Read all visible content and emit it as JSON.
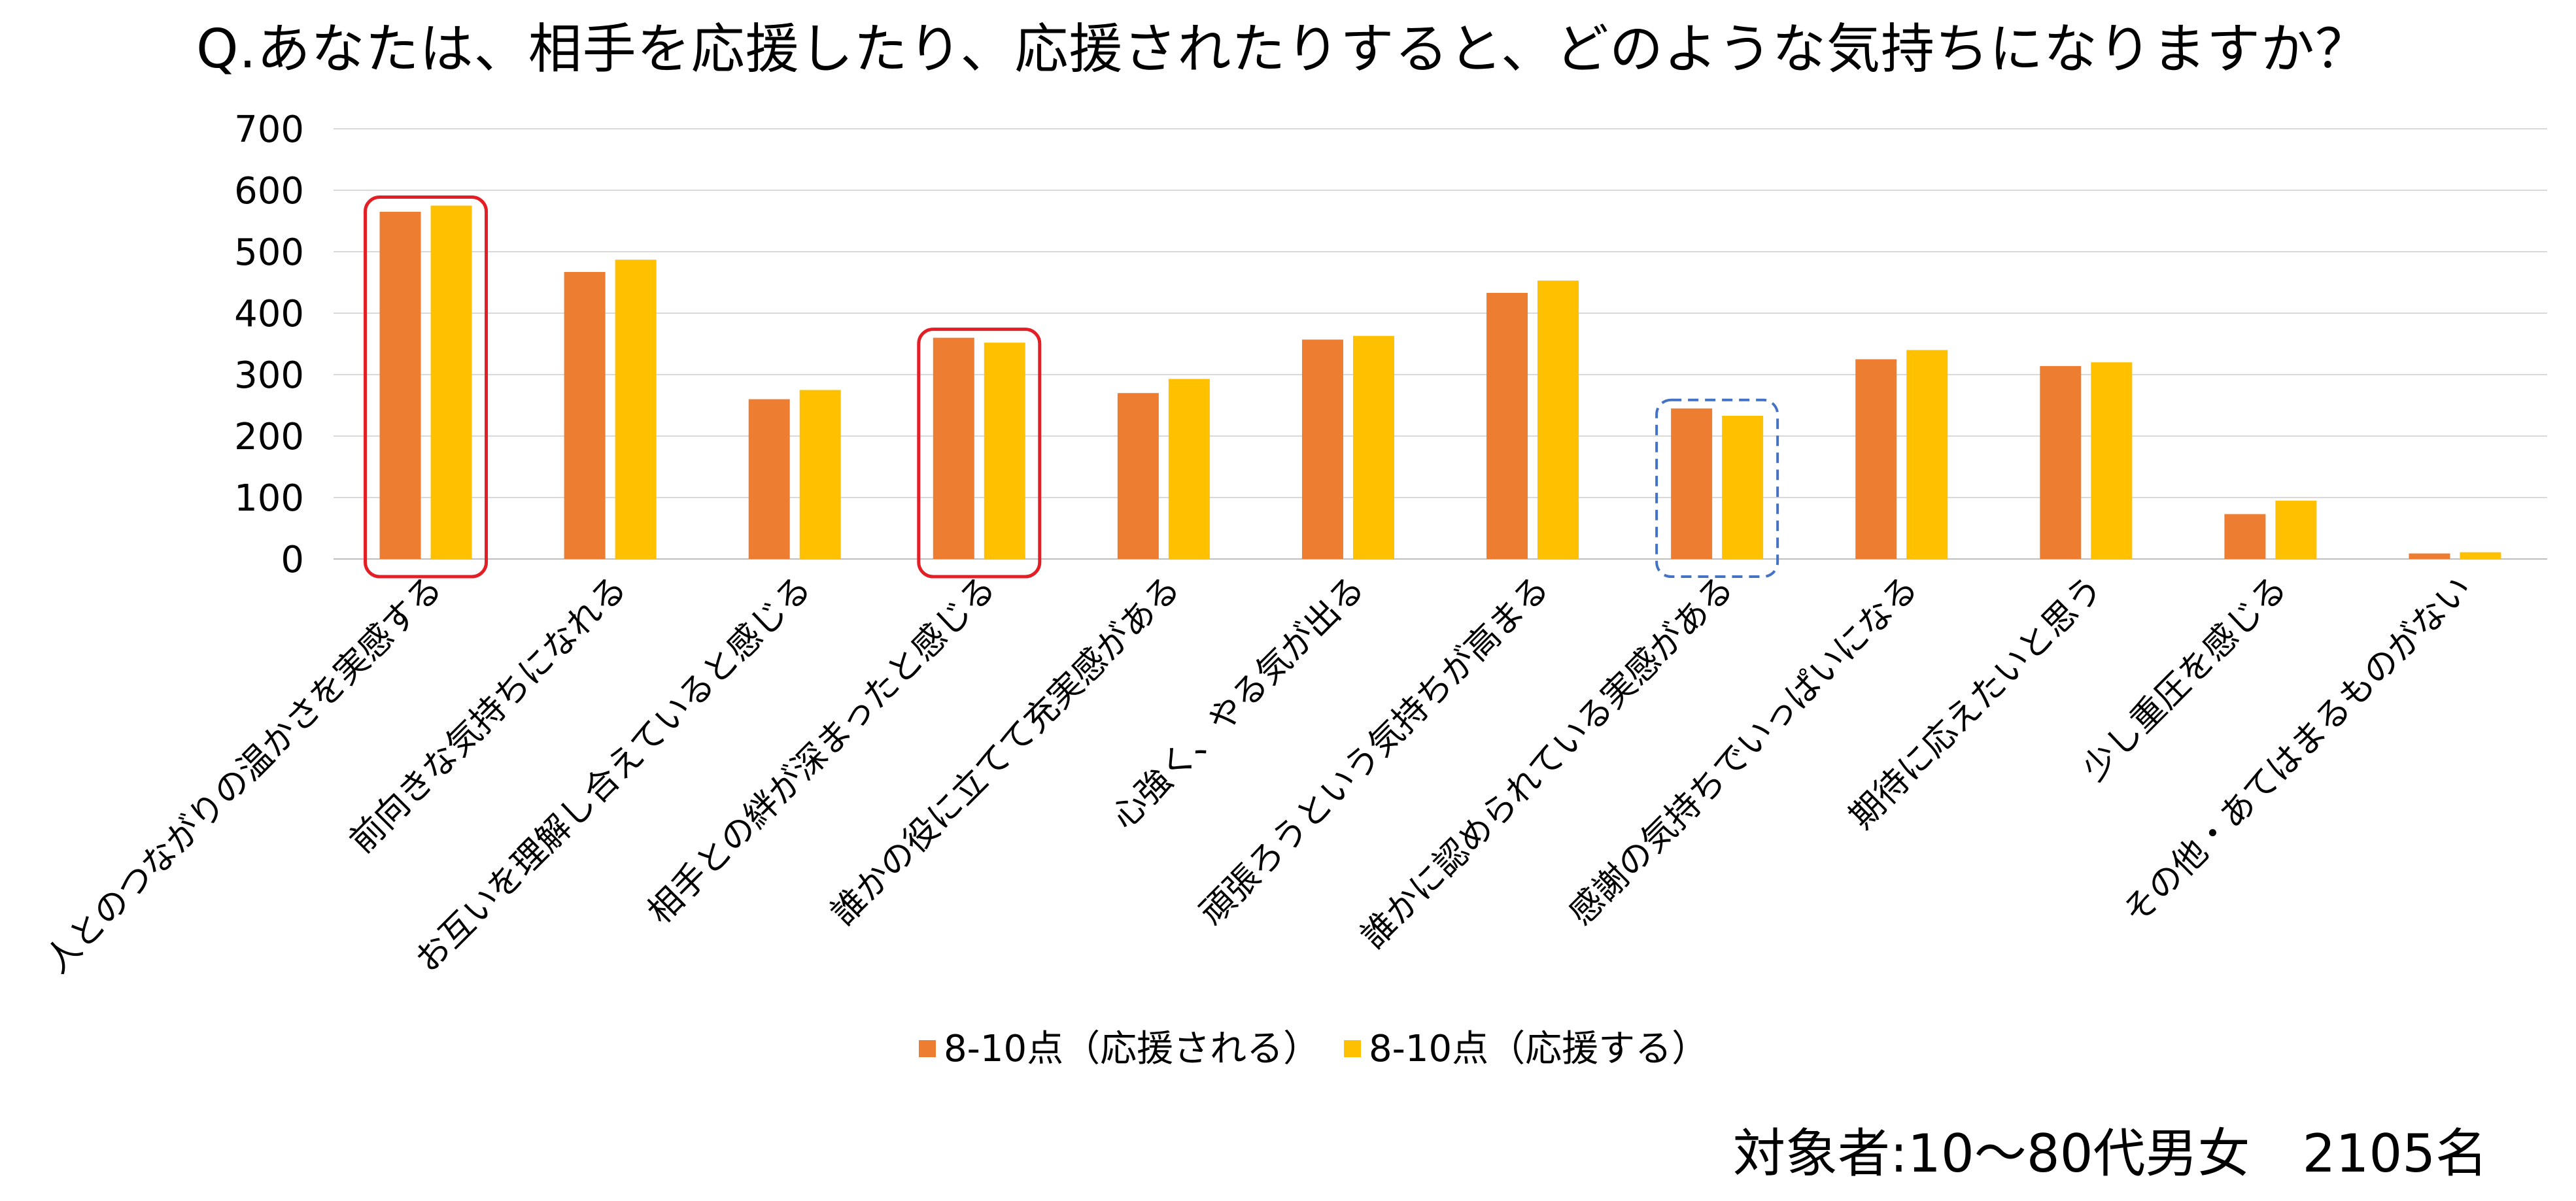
{
  "chart_data": {
    "type": "bar",
    "title": "Q.あなたは、相手を応援したり、応援されたりすると、どのような気持ちになりますか？",
    "categories": [
      "人とのつながりの温かさを実感する",
      "前向きな気持ちになれる",
      "お互いを理解し合えていると感じる",
      "相手との絆が深まったと感じる",
      "誰かの役に立てて充実感がある",
      "心強く、やる気が出る",
      "頑張ろうという気持ちが高まる",
      "誰かに認められている実感がある",
      "感謝の気持ちでいっぱいになる",
      "期待に応えたいと思う",
      "少し重圧を感じる",
      "その他・あてはまるものがない"
    ],
    "series": [
      {
        "name": "8-10点（応援される）",
        "color": "#ED7D31",
        "values": [
          565,
          467,
          260,
          360,
          270,
          357,
          433,
          245,
          325,
          314,
          73,
          9
        ]
      },
      {
        "name": "8-10点（応援する）",
        "color": "#FFC000",
        "values": [
          575,
          487,
          275,
          352,
          293,
          363,
          453,
          233,
          340,
          320,
          95,
          11
        ]
      }
    ],
    "ylim": [
      0,
      700
    ],
    "yticks": [
      0,
      100,
      200,
      300,
      400,
      500,
      600,
      700
    ],
    "grid": true,
    "legend": "bottom",
    "highlights": [
      {
        "category_index": 0,
        "style": "solid",
        "color": "#E31E25"
      },
      {
        "category_index": 3,
        "style": "solid",
        "color": "#E31E25"
      },
      {
        "category_index": 7,
        "style": "dashed",
        "color": "#4472C4"
      }
    ]
  },
  "note": "対象者:10～80代男女　2105名"
}
